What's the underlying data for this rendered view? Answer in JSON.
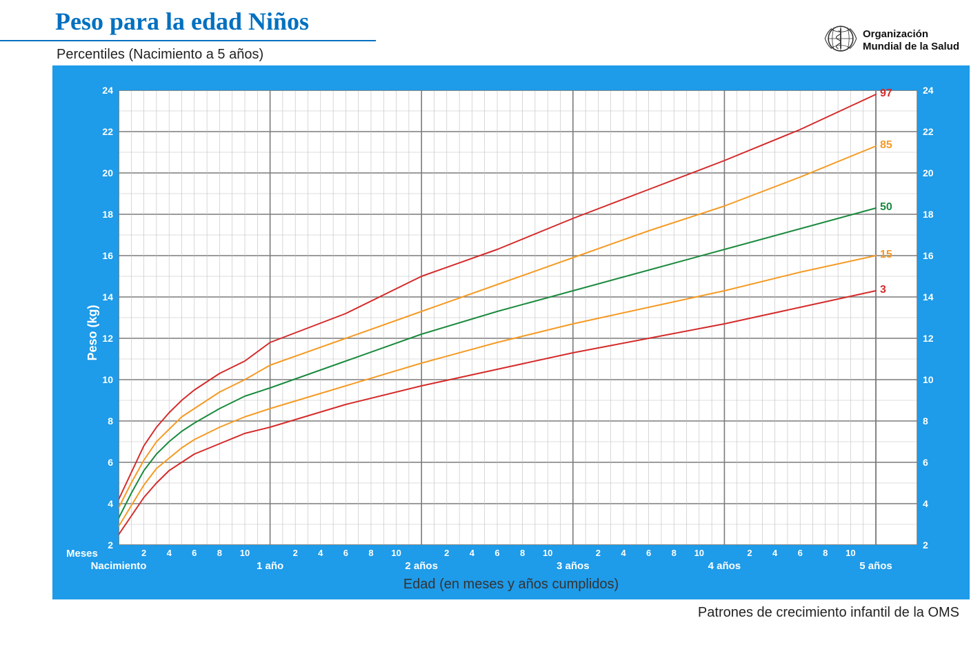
{
  "header": {
    "title": "Peso para la edad Niños",
    "subtitle": "Percentiles (Nacimiento a 5 años)"
  },
  "logo": {
    "line1": "Organización",
    "line2": "Mundial de la Salud"
  },
  "chart": {
    "type": "line",
    "background_color": "#1e9be9",
    "plot_background": "#ffffff",
    "grid_minor_color": "#bdbdbd",
    "grid_major_color": "#7a7a7a",
    "grid_minor_width": 0.6,
    "grid_major_width": 1.6,
    "y": {
      "title": "Peso (kg)",
      "min": 2,
      "max": 24,
      "major_step": 2,
      "minor_step": 1,
      "ticks": [
        2,
        4,
        6,
        8,
        10,
        12,
        14,
        16,
        18,
        20,
        22,
        24
      ],
      "tick_color": "#ffffff",
      "tick_fontsize": 14
    },
    "x": {
      "title": "Edad (en meses y años cumplidos)",
      "months_label": "Meses",
      "min_months": 0,
      "max_months": 60,
      "year_breaks": [
        0,
        12,
        24,
        36,
        48,
        60
      ],
      "year_labels": [
        "Nacimiento",
        "1 año",
        "2 años",
        "3 años",
        "4 años",
        "5 años"
      ],
      "month_ticks_within_year": [
        2,
        4,
        6,
        8,
        10
      ],
      "minor_step_months": 1,
      "tick_color": "#ffffff"
    },
    "percentiles": [
      {
        "label": "97",
        "color": "#d42a2a",
        "line_width": 2,
        "data": [
          [
            0,
            4.2
          ],
          [
            1,
            5.5
          ],
          [
            2,
            6.8
          ],
          [
            3,
            7.7
          ],
          [
            4,
            8.4
          ],
          [
            5,
            9.0
          ],
          [
            6,
            9.5
          ],
          [
            8,
            10.3
          ],
          [
            10,
            10.9
          ],
          [
            12,
            11.8
          ],
          [
            18,
            13.2
          ],
          [
            24,
            15.0
          ],
          [
            30,
            16.3
          ],
          [
            36,
            17.8
          ],
          [
            42,
            19.2
          ],
          [
            48,
            20.6
          ],
          [
            54,
            22.1
          ],
          [
            60,
            23.8
          ]
        ]
      },
      {
        "label": "85",
        "color": "#f59a23",
        "line_width": 2,
        "data": [
          [
            0,
            3.8
          ],
          [
            1,
            5.0
          ],
          [
            2,
            6.1
          ],
          [
            3,
            7.0
          ],
          [
            4,
            7.6
          ],
          [
            5,
            8.2
          ],
          [
            6,
            8.6
          ],
          [
            8,
            9.4
          ],
          [
            10,
            10.0
          ],
          [
            12,
            10.7
          ],
          [
            18,
            12.0
          ],
          [
            24,
            13.3
          ],
          [
            30,
            14.6
          ],
          [
            36,
            15.9
          ],
          [
            42,
            17.2
          ],
          [
            48,
            18.4
          ],
          [
            54,
            19.8
          ],
          [
            60,
            21.3
          ]
        ]
      },
      {
        "label": "50",
        "color": "#1a8a3e",
        "line_width": 2,
        "data": [
          [
            0,
            3.3
          ],
          [
            1,
            4.5
          ],
          [
            2,
            5.6
          ],
          [
            3,
            6.4
          ],
          [
            4,
            7.0
          ],
          [
            5,
            7.5
          ],
          [
            6,
            7.9
          ],
          [
            8,
            8.6
          ],
          [
            10,
            9.2
          ],
          [
            12,
            9.6
          ],
          [
            18,
            10.9
          ],
          [
            24,
            12.2
          ],
          [
            30,
            13.3
          ],
          [
            36,
            14.3
          ],
          [
            42,
            15.3
          ],
          [
            48,
            16.3
          ],
          [
            54,
            17.3
          ],
          [
            60,
            18.3
          ]
        ]
      },
      {
        "label": "15",
        "color": "#f59a23",
        "line_width": 2,
        "data": [
          [
            0,
            2.9
          ],
          [
            1,
            3.9
          ],
          [
            2,
            4.9
          ],
          [
            3,
            5.7
          ],
          [
            4,
            6.2
          ],
          [
            5,
            6.7
          ],
          [
            6,
            7.1
          ],
          [
            8,
            7.7
          ],
          [
            10,
            8.2
          ],
          [
            12,
            8.6
          ],
          [
            18,
            9.7
          ],
          [
            24,
            10.8
          ],
          [
            30,
            11.8
          ],
          [
            36,
            12.7
          ],
          [
            42,
            13.5
          ],
          [
            48,
            14.3
          ],
          [
            54,
            15.2
          ],
          [
            60,
            16.0
          ]
        ]
      },
      {
        "label": "3",
        "color": "#d42a2a",
        "line_width": 2,
        "data": [
          [
            0,
            2.5
          ],
          [
            1,
            3.4
          ],
          [
            2,
            4.3
          ],
          [
            3,
            5.0
          ],
          [
            4,
            5.6
          ],
          [
            5,
            6.0
          ],
          [
            6,
            6.4
          ],
          [
            8,
            6.9
          ],
          [
            10,
            7.4
          ],
          [
            12,
            7.7
          ],
          [
            18,
            8.8
          ],
          [
            24,
            9.7
          ],
          [
            30,
            10.5
          ],
          [
            36,
            11.3
          ],
          [
            42,
            12.0
          ],
          [
            48,
            12.7
          ],
          [
            54,
            13.5
          ],
          [
            60,
            14.3
          ]
        ]
      }
    ]
  },
  "footer": "Patrones de crecimiento infantil de la OMS"
}
